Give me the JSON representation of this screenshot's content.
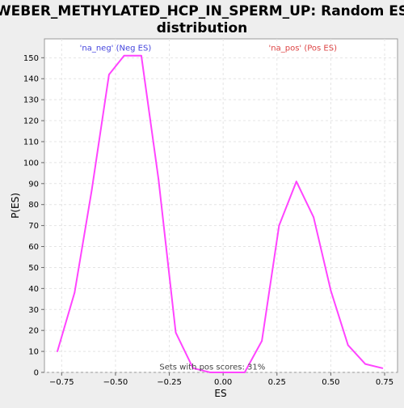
{
  "chart_data": {
    "type": "line",
    "title_lines": [
      "WEBER_METHYLATED_HCP_IN_SPERM_UP: Random ES",
      "distribution"
    ],
    "xlabel": "ES",
    "ylabel": "P(ES)",
    "xlim": [
      -0.83,
      0.81
    ],
    "ylim": [
      0,
      159
    ],
    "x_ticks": [
      -0.75,
      -0.5,
      -0.25,
      0.0,
      0.25,
      0.5,
      0.75
    ],
    "x_tick_labels": [
      "−0.75",
      "−0.50",
      "−0.25",
      "0.00",
      "0.25",
      "0.50",
      "0.75"
    ],
    "y_ticks": [
      0,
      10,
      20,
      30,
      40,
      50,
      60,
      70,
      80,
      90,
      100,
      110,
      120,
      130,
      140,
      150
    ],
    "grid": true,
    "series": [
      {
        "color": "#ff44ff",
        "x": [
          -0.77,
          -0.69,
          -0.61,
          -0.53,
          -0.46,
          -0.38,
          -0.3,
          -0.22,
          -0.14,
          -0.06,
          0.02,
          0.1,
          0.18,
          0.26,
          0.34,
          0.42,
          0.5,
          0.58,
          0.66,
          0.74
        ],
        "y": [
          10,
          38,
          87,
          142,
          151,
          151,
          92,
          19,
          2,
          0,
          0,
          0,
          15,
          70,
          91,
          74,
          39,
          13,
          4,
          2
        ]
      }
    ],
    "annotations": [
      {
        "text": "'na_neg' (Neg ES)",
        "x": -0.5,
        "y": 155,
        "color": "#4444dd"
      },
      {
        "text": "'na_pos' (Pos ES)",
        "x": 0.37,
        "y": 155,
        "color": "#dd4444"
      }
    ],
    "footnote": {
      "text": "Sets with pos scores: 31%",
      "x": -0.05,
      "y": 1.3
    }
  }
}
